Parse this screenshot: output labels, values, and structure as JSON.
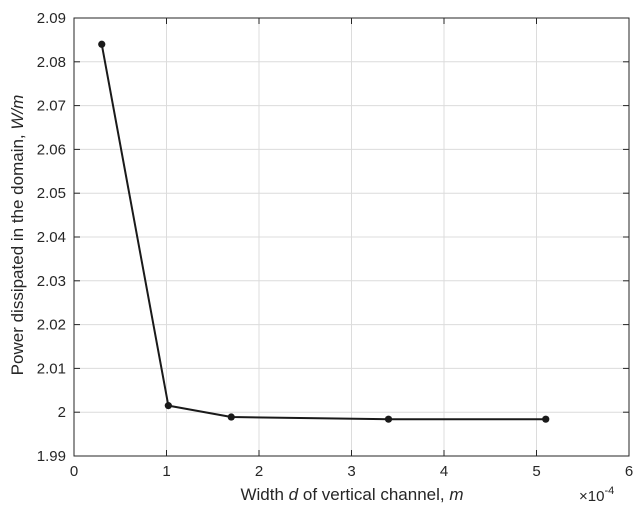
{
  "chart_data": {
    "type": "line",
    "xlabel_parts": [
      "Width ",
      "d",
      " of vertical channel, ",
      "m"
    ],
    "ylabel_parts": [
      "Power dissipated in the domain,  ",
      "W/m"
    ],
    "x_exponent_label": "×10",
    "x_exponent_power": "-4",
    "xlim": [
      0,
      6
    ],
    "ylim": [
      1.99,
      2.09
    ],
    "x_ticks": [
      0,
      1,
      2,
      3,
      4,
      5,
      6
    ],
    "x_tick_labels": [
      "0",
      "1",
      "2",
      "3",
      "4",
      "5",
      "6"
    ],
    "y_ticks": [
      1.99,
      2.0,
      2.01,
      2.02,
      2.03,
      2.04,
      2.05,
      2.06,
      2.07,
      2.08,
      2.09
    ],
    "y_tick_labels": [
      "1.99",
      "2",
      "2.01",
      "2.02",
      "2.03",
      "2.04",
      "2.05",
      "2.06",
      "2.07",
      "2.08",
      "2.09"
    ],
    "grid": true,
    "series": [
      {
        "x": [
          0.3,
          1.02,
          1.7,
          3.4,
          5.1
        ],
        "y": [
          2.084,
          2.0015,
          1.9989,
          1.9984,
          1.9984
        ],
        "color": "#1a1a1a"
      }
    ]
  }
}
